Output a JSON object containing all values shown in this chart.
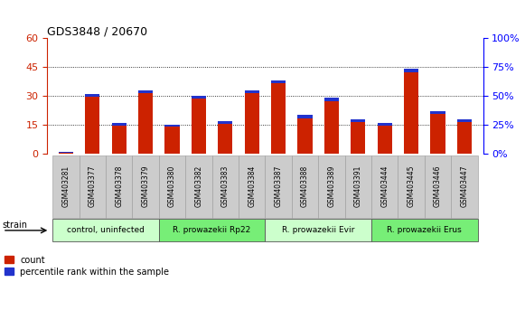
{
  "title": "GDS3848 / 20670",
  "samples": [
    "GSM403281",
    "GSM403377",
    "GSM403378",
    "GSM403379",
    "GSM403380",
    "GSM403382",
    "GSM403383",
    "GSM403384",
    "GSM403387",
    "GSM403388",
    "GSM403389",
    "GSM403391",
    "GSM403444",
    "GSM403445",
    "GSM403446",
    "GSM403447"
  ],
  "count_values": [
    1,
    31,
    16,
    33,
    15,
    30,
    17,
    33,
    38,
    20,
    29,
    18,
    16,
    44,
    22,
    18
  ],
  "percentile_values": [
    0.5,
    1.5,
    1.5,
    1.5,
    1.0,
    1.5,
    1.5,
    1.5,
    1.5,
    1.5,
    1.5,
    1.5,
    1.5,
    1.5,
    1.5,
    1.5
  ],
  "groups": [
    {
      "label": "control, uninfected",
      "start": 0,
      "end": 4,
      "color": "#ccffcc"
    },
    {
      "label": "R. prowazekii Rp22",
      "start": 4,
      "end": 8,
      "color": "#77ee77"
    },
    {
      "label": "R. prowazekii Evir",
      "start": 8,
      "end": 12,
      "color": "#ccffcc"
    },
    {
      "label": "R. prowazekii Erus",
      "start": 12,
      "end": 16,
      "color": "#77ee77"
    }
  ],
  "left_ylim": [
    0,
    60
  ],
  "right_ylim": [
    0,
    100
  ],
  "left_yticks": [
    0,
    15,
    30,
    45,
    60
  ],
  "right_yticks": [
    0,
    25,
    50,
    75,
    100
  ],
  "count_color": "#cc2200",
  "percentile_color": "#2233cc",
  "bar_width": 0.55,
  "bg_color": "#ffffff",
  "plot_bg": "#ffffff",
  "tick_label_bg": "#cccccc"
}
